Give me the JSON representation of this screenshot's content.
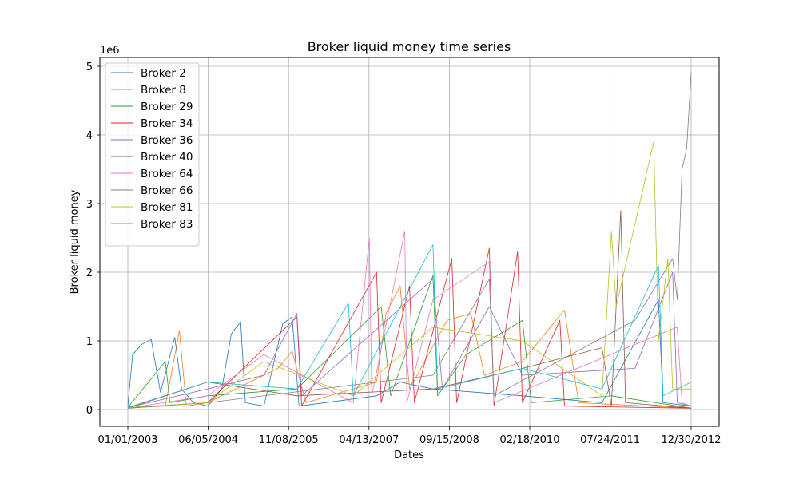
{
  "chart_data": {
    "type": "line",
    "title": "Broker liquid money time series",
    "xlabel": "Dates",
    "ylabel": "Broker liquid money",
    "y_multiplier_label": "1e6",
    "x_tick_labels": [
      "01/01/2003",
      "06/05/2004",
      "11/08/2005",
      "04/13/2007",
      "09/15/2008",
      "02/18/2010",
      "07/24/2011",
      "12/30/2012"
    ],
    "x_range": [
      "01/01/2003",
      "12/30/2012"
    ],
    "y_ticks": [
      0,
      1,
      2,
      3,
      4,
      5
    ],
    "ylim": [
      -0.25,
      5.08
    ],
    "grid": true,
    "legend_position": "top-left",
    "series": [
      {
        "name": "Broker 2",
        "color": "#1f77b4",
        "values": [
          [
            "01/01/2003",
            0.05
          ],
          [
            "02/01/2003",
            0.8
          ],
          [
            "04/01/2003",
            0.95
          ],
          [
            "06/01/2003",
            1.02
          ],
          [
            "08/01/2003",
            0.25
          ],
          [
            "11/01/2003",
            1.05
          ],
          [
            "12/15/2003",
            0.3
          ],
          [
            "03/01/2004",
            0.1
          ],
          [
            "06/01/2004",
            0.05
          ],
          [
            "09/01/2004",
            0.3
          ],
          [
            "11/01/2004",
            1.1
          ],
          [
            "01/01/2005",
            1.28
          ],
          [
            "02/01/2005",
            0.1
          ],
          [
            "06/01/2005",
            0.05
          ],
          [
            "10/01/2005",
            1.25
          ],
          [
            "12/01/2005",
            1.35
          ],
          [
            "01/15/2006",
            0.05
          ],
          [
            "06/01/2007",
            0.2
          ],
          [
            "11/01/2007",
            0.4
          ],
          [
            "06/01/2008",
            0.3
          ],
          [
            "01/01/2010",
            0.2
          ],
          [
            "06/01/2011",
            0.1
          ],
          [
            "06/01/2012",
            1.6
          ],
          [
            "07/01/2012",
            0.1
          ],
          [
            "12/30/2012",
            0.05
          ]
        ]
      },
      {
        "name": "Broker 8",
        "color": "#ff7f0e",
        "values": [
          [
            "01/01/2003",
            0.03
          ],
          [
            "09/01/2003",
            0.05
          ],
          [
            "12/01/2003",
            1.15
          ],
          [
            "01/15/2004",
            0.05
          ],
          [
            "06/01/2004",
            0.1
          ],
          [
            "06/01/2005",
            0.5
          ],
          [
            "09/01/2005",
            0.6
          ],
          [
            "12/01/2005",
            0.85
          ],
          [
            "03/01/2006",
            0.1
          ],
          [
            "06/01/2007",
            0.4
          ],
          [
            "08/01/2007",
            1.4
          ],
          [
            "11/01/2007",
            1.8
          ],
          [
            "01/01/2008",
            0.3
          ],
          [
            "09/01/2008",
            1.3
          ],
          [
            "02/01/2009",
            1.4
          ],
          [
            "05/01/2009",
            0.5
          ],
          [
            "01/01/2010",
            0.7
          ],
          [
            "10/01/2010",
            1.45
          ],
          [
            "01/01/2011",
            0.1
          ],
          [
            "12/30/2012",
            0.02
          ]
        ]
      },
      {
        "name": "Broker 29",
        "color": "#2ca02c",
        "values": [
          [
            "01/01/2003",
            0.03
          ],
          [
            "09/01/2003",
            0.7
          ],
          [
            "10/01/2003",
            0.1
          ],
          [
            "06/01/2004",
            0.2
          ],
          [
            "01/01/2006",
            0.3
          ],
          [
            "07/01/2007",
            1.5
          ],
          [
            "09/01/2007",
            0.2
          ],
          [
            "06/01/2008",
            1.95
          ],
          [
            "07/01/2008",
            0.2
          ],
          [
            "01/01/2009",
            0.8
          ],
          [
            "01/01/2010",
            1.3
          ],
          [
            "03/01/2010",
            0.1
          ],
          [
            "08/01/2011",
            0.2
          ],
          [
            "12/30/2012",
            0.02
          ]
        ]
      },
      {
        "name": "Broker 34",
        "color": "#d62728",
        "values": [
          [
            "01/01/2003",
            0.02
          ],
          [
            "06/01/2004",
            0.1
          ],
          [
            "01/01/2006",
            1.35
          ],
          [
            "02/01/2006",
            0.05
          ],
          [
            "06/01/2007",
            2.0
          ],
          [
            "07/01/2007",
            0.1
          ],
          [
            "01/01/2008",
            1.8
          ],
          [
            "02/01/2008",
            0.1
          ],
          [
            "10/01/2008",
            2.2
          ],
          [
            "11/01/2008",
            0.1
          ],
          [
            "06/01/2009",
            2.35
          ],
          [
            "07/01/2009",
            0.05
          ],
          [
            "12/01/2009",
            2.3
          ],
          [
            "01/01/2010",
            0.1
          ],
          [
            "09/01/2010",
            1.3
          ],
          [
            "10/01/2010",
            0.05
          ],
          [
            "12/30/2012",
            0.02
          ]
        ]
      },
      {
        "name": "Broker 36",
        "color": "#9467bd",
        "values": [
          [
            "01/01/2003",
            0.03
          ],
          [
            "06/01/2004",
            0.3
          ],
          [
            "06/01/2005",
            0.5
          ],
          [
            "01/01/2006",
            1.4
          ],
          [
            "02/01/2006",
            0.2
          ],
          [
            "06/01/2008",
            1.9
          ],
          [
            "08/01/2008",
            0.3
          ],
          [
            "06/01/2009",
            1.5
          ],
          [
            "01/01/2010",
            0.5
          ],
          [
            "01/01/2012",
            0.6
          ],
          [
            "09/01/2012",
            2.0
          ],
          [
            "10/01/2012",
            0.1
          ],
          [
            "12/30/2012",
            0.05
          ]
        ]
      },
      {
        "name": "Broker 40",
        "color": "#8c564b",
        "values": [
          [
            "01/01/2003",
            0.02
          ],
          [
            "06/01/2004",
            0.4
          ],
          [
            "01/01/2006",
            0.2
          ],
          [
            "06/01/2008",
            0.3
          ],
          [
            "01/01/2010",
            0.6
          ],
          [
            "06/01/2011",
            0.9
          ],
          [
            "08/01/2011",
            0.05
          ],
          [
            "10/01/2011",
            2.9
          ],
          [
            "11/01/2011",
            0.1
          ],
          [
            "12/30/2012",
            0.02
          ]
        ]
      },
      {
        "name": "Broker 64",
        "color": "#e377c2",
        "values": [
          [
            "01/01/2003",
            0.02
          ],
          [
            "06/01/2004",
            0.2
          ],
          [
            "06/01/2005",
            0.8
          ],
          [
            "01/01/2007",
            0.1
          ],
          [
            "04/15/2007",
            2.5
          ],
          [
            "05/01/2007",
            0.2
          ],
          [
            "12/01/2007",
            2.6
          ],
          [
            "12/15/2007",
            0.1
          ],
          [
            "06/01/2008",
            1.6
          ],
          [
            "06/01/2009",
            2.15
          ],
          [
            "07/01/2009",
            0.1
          ],
          [
            "10/01/2012",
            1.2
          ],
          [
            "11/01/2012",
            0.1
          ],
          [
            "12/30/2012",
            0.05
          ]
        ]
      },
      {
        "name": "Broker 66",
        "color": "#7f7f7f",
        "values": [
          [
            "01/01/2003",
            0.02
          ],
          [
            "06/01/2004",
            0.1
          ],
          [
            "06/01/2008",
            0.5
          ],
          [
            "06/01/2009",
            1.9
          ],
          [
            "07/01/2009",
            0.2
          ],
          [
            "01/01/2012",
            1.3
          ],
          [
            "09/01/2012",
            2.2
          ],
          [
            "10/01/2012",
            1.6
          ],
          [
            "11/01/2012",
            3.5
          ],
          [
            "12/01/2012",
            3.8
          ],
          [
            "12/30/2012",
            4.9
          ]
        ]
      },
      {
        "name": "Broker 81",
        "color": "#bcbd22",
        "values": [
          [
            "01/01/2003",
            0.03
          ],
          [
            "06/01/2004",
            0.1
          ],
          [
            "06/01/2005",
            0.7
          ],
          [
            "01/01/2007",
            0.2
          ],
          [
            "06/01/2008",
            1.2
          ],
          [
            "01/01/2010",
            1.0
          ],
          [
            "06/01/2011",
            0.2
          ],
          [
            "08/01/2011",
            2.6
          ],
          [
            "09/01/2011",
            1.5
          ],
          [
            "05/01/2012",
            3.9
          ],
          [
            "06/01/2012",
            1.0
          ],
          [
            "08/01/2012",
            2.2
          ],
          [
            "09/01/2012",
            0.3
          ],
          [
            "12/30/2012",
            0.3
          ]
        ]
      },
      {
        "name": "Broker 83",
        "color": "#17becf",
        "values": [
          [
            "01/01/2003",
            0.03
          ],
          [
            "06/01/2004",
            0.4
          ],
          [
            "01/01/2006",
            0.3
          ],
          [
            "12/01/2006",
            1.55
          ],
          [
            "01/01/2007",
            0.2
          ],
          [
            "06/01/2008",
            2.4
          ],
          [
            "07/01/2008",
            0.3
          ],
          [
            "01/01/2010",
            0.6
          ],
          [
            "06/01/2011",
            0.3
          ],
          [
            "06/01/2012",
            2.1
          ],
          [
            "07/01/2012",
            0.2
          ],
          [
            "12/30/2012",
            0.4
          ]
        ]
      }
    ]
  }
}
